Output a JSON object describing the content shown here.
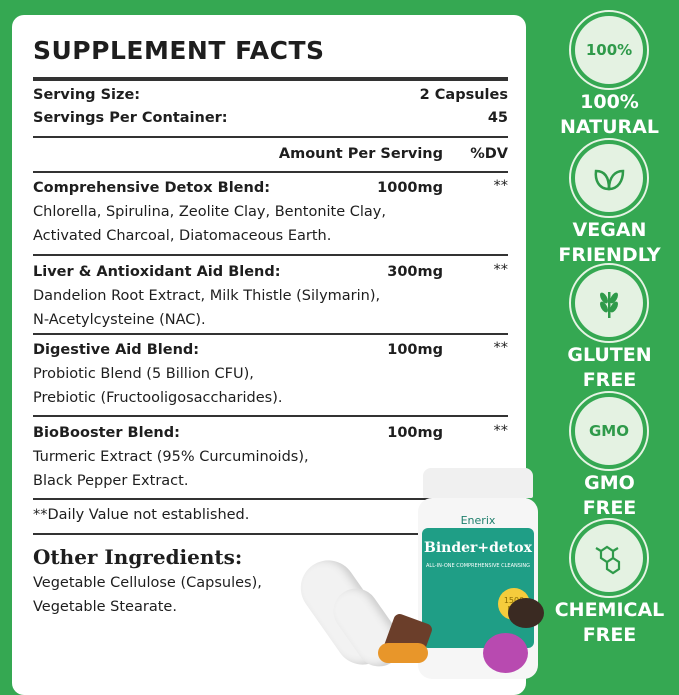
{
  "title": "SUPPLEMENT FACTS",
  "serving_size": {
    "label": "Serving Size:",
    "value": "2 Capsules"
  },
  "servings_per_container": {
    "label": "Servings Per Container:",
    "value": "45"
  },
  "columns": {
    "amount": "Amount Per Serving",
    "dv": "%DV"
  },
  "blends": [
    {
      "name": "Comprehensive Detox Blend:",
      "amount": "1000mg",
      "dv": "**",
      "lines": [
        "Chlorella, Spirulina, Zeolite Clay, Bentonite Clay,",
        "Activated Charcoal, Diatomaceous Earth."
      ]
    },
    {
      "name": "Liver & Antioxidant Aid Blend:",
      "amount": "300mg",
      "dv": "**",
      "lines": [
        "Dandelion Root Extract, Milk Thistle (Silymarin),",
        "N-Acetylcysteine (NAC)."
      ]
    },
    {
      "name": "Digestive Aid Blend:",
      "amount": "100mg",
      "dv": "**",
      "lines": [
        "Probiotic Blend (5 Billion CFU),",
        "Prebiotic (Fructooligosaccharides)."
      ]
    },
    {
      "name": "BioBooster Blend:",
      "amount": "100mg",
      "dv": "**",
      "lines": [
        "Turmeric Extract (95% Curcuminoids),",
        "Black Pepper Extract."
      ]
    }
  ],
  "note": "**Daily Value not established.",
  "other": {
    "title": "Other Ingredients:",
    "lines": [
      "Vegetable Cellulose (Capsules),",
      "Vegetable Stearate."
    ]
  },
  "product": {
    "brand": "Enerix",
    "name": "Binder+detox",
    "tagline": "ALL-IN-ONE COMPREHENSIVE CLEANSING",
    "dose": "1500 MG"
  },
  "badges": [
    {
      "icon": "100-percent-icon",
      "icon_text": "100%",
      "label1": "100%",
      "label2": "NATURAL"
    },
    {
      "icon": "leaf-icon",
      "label1": "VEGAN",
      "label2": "FRIENDLY"
    },
    {
      "icon": "wheat-icon",
      "label1": "GLUTEN",
      "label2": "FREE"
    },
    {
      "icon": "gmo-icon",
      "icon_text": "GMO",
      "label1": "GMO",
      "label2": "FREE"
    },
    {
      "icon": "molecule-icon",
      "label1": "CHEMICAL",
      "label2": "FREE"
    }
  ],
  "colors": {
    "background": "#35a852",
    "badge_fill": "#e4f2e2",
    "bottle_label": "#1f9e86"
  }
}
